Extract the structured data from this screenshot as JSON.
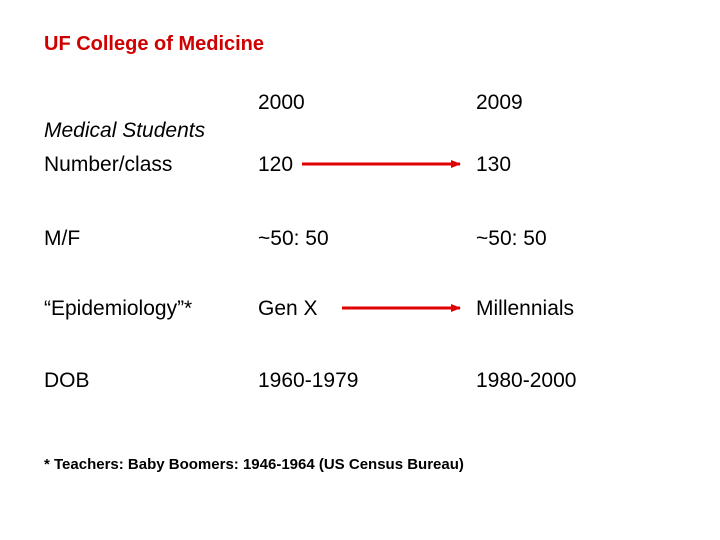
{
  "header": {
    "title": "UF College of Medicine"
  },
  "table": {
    "columns": [
      "2000",
      "2009"
    ],
    "section": "Medical Students",
    "rows": [
      [
        "Number/class",
        "120",
        "130"
      ],
      [
        "M/F",
        "~50: 50",
        "~50: 50"
      ],
      [
        "“Epidemiology”*",
        "Gen X",
        "Millennials"
      ],
      [
        "DOB",
        "1960-1979",
        "1980-2000"
      ]
    ]
  },
  "footnote": "* Teachers: Baby Boomers: 1946-1964 (US Census Bureau)"
}
